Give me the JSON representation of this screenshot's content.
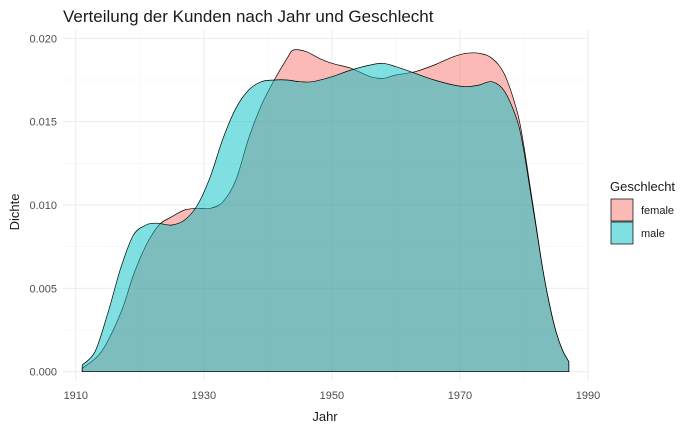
{
  "chart_data": {
    "type": "area",
    "subtype": "density",
    "title": "Verteilung der Kunden nach Jahr und Geschlecht",
    "xlabel": "Jahr",
    "ylabel": "Dichte",
    "xlim": [
      1908,
      1990
    ],
    "ylim": [
      -0.0005,
      0.0205
    ],
    "x_ticks": [
      1910,
      1930,
      1950,
      1970,
      1990
    ],
    "y_ticks": [
      0.0,
      0.005,
      0.01,
      0.015,
      0.02
    ],
    "y_tick_labels": [
      "0.000",
      "0.005",
      "0.010",
      "0.015",
      "0.020"
    ],
    "grid": true,
    "legend": {
      "title": "Geschlecht",
      "position": "right"
    },
    "series": [
      {
        "name": "female",
        "color": "#F8766D",
        "opacity": 0.5,
        "x": [
          1911,
          1914,
          1917,
          1919,
          1921,
          1923,
          1925,
          1927,
          1929,
          1931,
          1933,
          1935,
          1937,
          1939,
          1941,
          1943,
          1944,
          1946,
          1948,
          1950,
          1953,
          1956,
          1958,
          1960,
          1963,
          1966,
          1969,
          1971,
          1973,
          1975,
          1977,
          1979,
          1980,
          1981,
          1982,
          1983,
          1984,
          1985,
          1986,
          1987
        ],
        "y": [
          0.0002,
          0.0012,
          0.0035,
          0.0058,
          0.0076,
          0.0088,
          0.0093,
          0.0097,
          0.0098,
          0.0098,
          0.0102,
          0.0115,
          0.014,
          0.016,
          0.0175,
          0.0188,
          0.0193,
          0.0192,
          0.0188,
          0.0185,
          0.0182,
          0.0177,
          0.0176,
          0.0178,
          0.018,
          0.0184,
          0.0189,
          0.0191,
          0.0191,
          0.0188,
          0.0178,
          0.0155,
          0.0135,
          0.011,
          0.0085,
          0.006,
          0.004,
          0.0024,
          0.0013,
          0.0006
        ]
      },
      {
        "name": "male",
        "color": "#00BFC4",
        "opacity": 0.5,
        "x": [
          1911,
          1913,
          1915,
          1917,
          1919,
          1921,
          1922,
          1923,
          1925,
          1927,
          1929,
          1931,
          1933,
          1935,
          1937,
          1939,
          1941,
          1943,
          1945,
          1947,
          1950,
          1953,
          1956,
          1958,
          1960,
          1963,
          1966,
          1969,
          1971,
          1973,
          1975,
          1977,
          1979,
          1980,
          1981,
          1982,
          1983,
          1984,
          1985,
          1986,
          1987
        ],
        "y": [
          0.0004,
          0.0012,
          0.0035,
          0.0062,
          0.0082,
          0.0088,
          0.0089,
          0.0089,
          0.0088,
          0.0091,
          0.01,
          0.0117,
          0.014,
          0.0158,
          0.0169,
          0.0174,
          0.0175,
          0.0175,
          0.0174,
          0.0174,
          0.0177,
          0.0181,
          0.0184,
          0.0185,
          0.0183,
          0.0179,
          0.0175,
          0.0172,
          0.0171,
          0.0172,
          0.0174,
          0.0168,
          0.015,
          0.0132,
          0.0108,
          0.0084,
          0.006,
          0.004,
          0.0024,
          0.0013,
          0.0006
        ]
      }
    ]
  }
}
